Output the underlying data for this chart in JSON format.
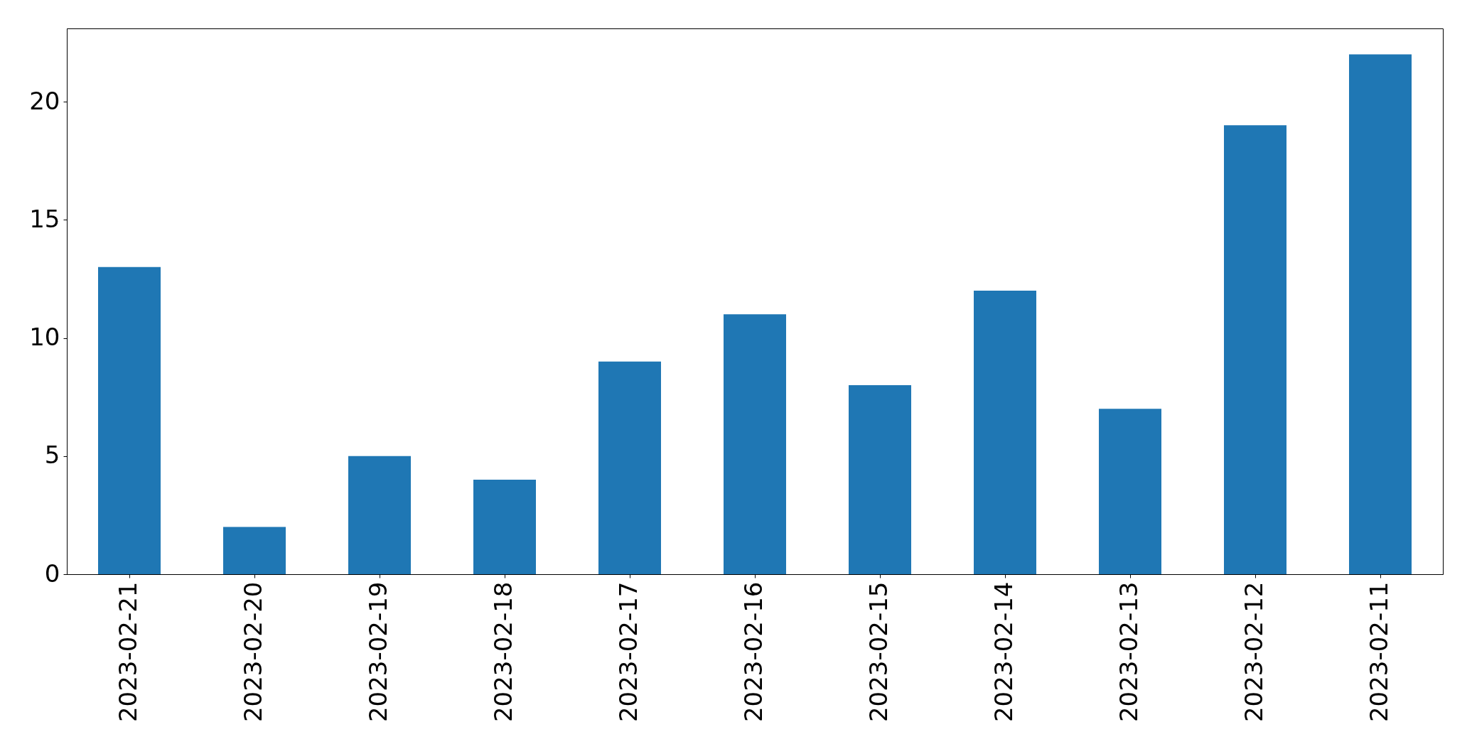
{
  "chart_data": {
    "type": "bar",
    "categories": [
      "2023-02-21",
      "2023-02-20",
      "2023-02-19",
      "2023-02-18",
      "2023-02-17",
      "2023-02-16",
      "2023-02-15",
      "2023-02-14",
      "2023-02-13",
      "2023-02-12",
      "2023-02-11"
    ],
    "values": [
      13,
      2,
      5,
      4,
      9,
      11,
      8,
      12,
      7,
      19,
      22
    ],
    "color": "#1f77b4",
    "ylim": [
      0,
      23.1
    ],
    "yticks": [
      0,
      5,
      10,
      15,
      20
    ]
  }
}
